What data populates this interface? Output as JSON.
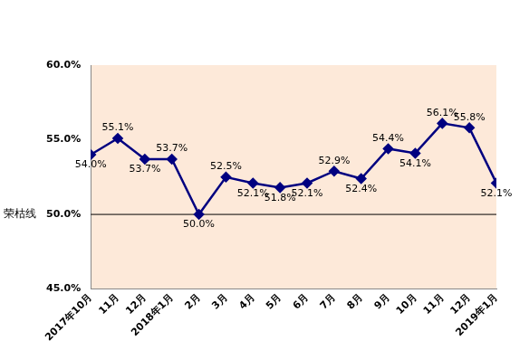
{
  "chart_data": {
    "type": "line",
    "categories": [
      "2017年10月",
      "11月",
      "12月",
      "2018年1月",
      "2月",
      "3月",
      "4月",
      "5月",
      "6月",
      "7月",
      "8月",
      "9月",
      "10月",
      "11月",
      "12月",
      "2019年1月"
    ],
    "values": [
      54.0,
      55.1,
      53.7,
      53.7,
      50.0,
      52.5,
      52.1,
      51.8,
      52.1,
      52.9,
      52.4,
      54.4,
      54.1,
      56.1,
      55.8,
      52.1
    ],
    "value_labels": [
      "54.0%",
      "55.1%",
      "53.7%",
      "53.7%",
      "50.0%",
      "52.5%",
      "52.1%",
      "51.8%",
      "52.1%",
      "52.9%",
      "52.4%",
      "54.4%",
      "54.1%",
      "56.1%",
      "55.8%",
      "52.1%"
    ],
    "color": "#000080",
    "marker": "diamond",
    "data_labels": true,
    "grid": false,
    "ylim": [
      45,
      60
    ],
    "yticks": [
      {
        "value": 45,
        "label": "45.0%"
      },
      {
        "value": 50,
        "label": "50.0%"
      },
      {
        "value": 55,
        "label": "55.0%"
      },
      {
        "value": 60,
        "label": "60.0%"
      }
    ],
    "annotations": [
      {
        "text": "荣枯线",
        "value": 50
      }
    ]
  }
}
